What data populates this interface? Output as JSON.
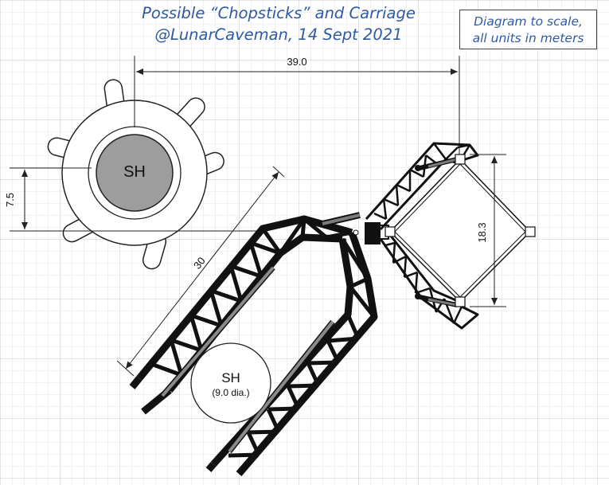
{
  "title": {
    "line1": "Possible “Chopsticks” and Carriage",
    "line2": "@LunarCaveman, 14 Sept 2021"
  },
  "scale_note": {
    "line1": "Diagram to scale,",
    "line2": "all units in meters"
  },
  "dimensions": {
    "horizontal": "39.0",
    "vertical_left": "7.5",
    "arm_length": "30",
    "carriage": "18.3"
  },
  "labels": {
    "launch_mount_sh": "SH",
    "booster_sh": "SH",
    "booster_diameter": "(9.0 dia.)"
  },
  "colors": {
    "title_text": "#2f5aa0",
    "grid_minor": "#e3e3e3",
    "grid_major": "#cdcdcd",
    "structure": "#111111",
    "booster_fill": "#9d9d9d",
    "rail": "#7a7a7a"
  }
}
